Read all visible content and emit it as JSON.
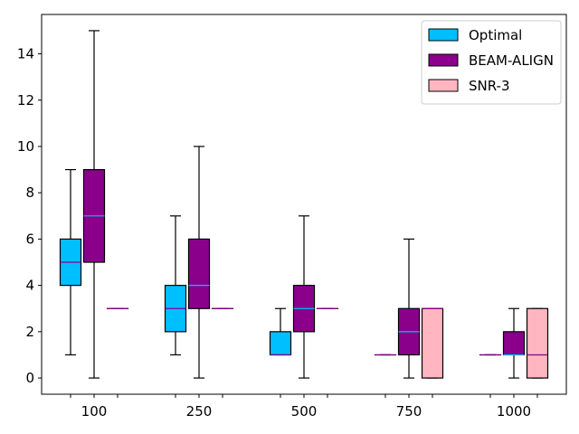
{
  "chart_data": {
    "type": "box",
    "categories": [
      "100",
      "250",
      "500",
      "750",
      "1000"
    ],
    "ylim": [
      -0.7,
      15.7
    ],
    "yticks": [
      0,
      2,
      4,
      6,
      8,
      10,
      12,
      14
    ],
    "xlabel": "",
    "ylabel": "",
    "title": "",
    "grid": false,
    "legend_position": "top-right",
    "series": [
      {
        "name": "Optimal",
        "color": "#00bfff",
        "median_color": "#8b008b",
        "boxes": [
          {
            "whislo": 1,
            "q1": 4,
            "med": 5,
            "q3": 6,
            "whishi": 9
          },
          {
            "whislo": 1,
            "q1": 2,
            "med": 3,
            "q3": 4,
            "whishi": 7
          },
          {
            "whislo": 1,
            "q1": 1,
            "med": 1,
            "q3": 2,
            "whishi": 3
          },
          {
            "whislo": 1,
            "q1": 1,
            "med": 1,
            "q3": 1,
            "whishi": 1
          },
          {
            "whislo": 1,
            "q1": 1,
            "med": 1,
            "q3": 1,
            "whishi": 1
          }
        ]
      },
      {
        "name": "BEAM-ALIGN",
        "color": "#8b008b",
        "median_color": "#00bfff",
        "boxes": [
          {
            "whislo": 0,
            "q1": 5,
            "med": 7,
            "q3": 9,
            "whishi": 15
          },
          {
            "whislo": 0,
            "q1": 3,
            "med": 4,
            "q3": 6,
            "whishi": 10
          },
          {
            "whislo": 0,
            "q1": 2,
            "med": 3,
            "q3": 4,
            "whishi": 7
          },
          {
            "whislo": 0,
            "q1": 1,
            "med": 2,
            "q3": 3,
            "whishi": 6
          },
          {
            "whislo": 0,
            "q1": 1,
            "med": 1,
            "q3": 2,
            "whishi": 3
          }
        ]
      },
      {
        "name": "SNR-3",
        "color": "#ffb6c1",
        "median_color": "#8b008b",
        "boxes": [
          {
            "whislo": 3,
            "q1": 3,
            "med": 3,
            "q3": 3,
            "whishi": 3
          },
          {
            "whislo": 3,
            "q1": 3,
            "med": 3,
            "q3": 3,
            "whishi": 3
          },
          {
            "whislo": 3,
            "q1": 3,
            "med": 3,
            "q3": 3,
            "whishi": 3
          },
          {
            "whislo": 0,
            "q1": 0,
            "med": 3,
            "q3": 3,
            "whishi": 3
          },
          {
            "whislo": 0,
            "q1": 0,
            "med": 1,
            "q3": 3,
            "whishi": 3
          }
        ]
      }
    ]
  }
}
